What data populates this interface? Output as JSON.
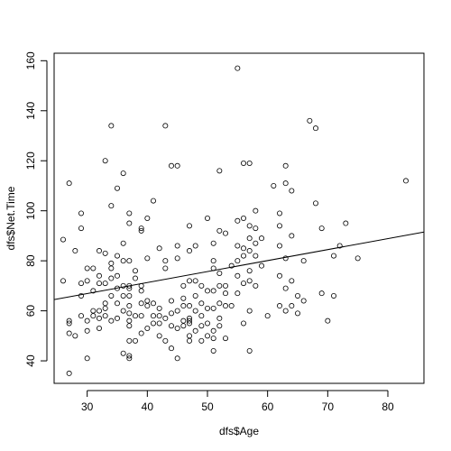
{
  "chart_data": {
    "type": "scatter",
    "title": "",
    "xlabel": "dfs$Age",
    "ylabel": "dfs$Net.Time",
    "xlim": [
      24.5,
      86
    ],
    "ylim": [
      31,
      163
    ],
    "xticks": [
      30,
      40,
      50,
      60,
      70,
      80
    ],
    "yticks": [
      40,
      60,
      80,
      100,
      120,
      140,
      160
    ],
    "grid": false,
    "legend": "none",
    "regression_line": {
      "x0": 24.5,
      "y0": 64.5,
      "x1": 86,
      "y1": 91.5
    },
    "points": [
      [
        26,
        88.5
      ],
      [
        26,
        72
      ],
      [
        27,
        111
      ],
      [
        27,
        56
      ],
      [
        27,
        55
      ],
      [
        27,
        51
      ],
      [
        27,
        35
      ],
      [
        28,
        50
      ],
      [
        28,
        84
      ],
      [
        29,
        99
      ],
      [
        29,
        93
      ],
      [
        29,
        71
      ],
      [
        29,
        66
      ],
      [
        29,
        58
      ],
      [
        30,
        77
      ],
      [
        30,
        72
      ],
      [
        30,
        56
      ],
      [
        30,
        52
      ],
      [
        30,
        41
      ],
      [
        31,
        77
      ],
      [
        31,
        60
      ],
      [
        31,
        58
      ],
      [
        31,
        68
      ],
      [
        32,
        84
      ],
      [
        32,
        74
      ],
      [
        32,
        71
      ],
      [
        32,
        60
      ],
      [
        32,
        57
      ],
      [
        32,
        53
      ],
      [
        33,
        120
      ],
      [
        33,
        83
      ],
      [
        33,
        71
      ],
      [
        33,
        63
      ],
      [
        33,
        61
      ],
      [
        33,
        58
      ],
      [
        34,
        134
      ],
      [
        34,
        102
      ],
      [
        34,
        79
      ],
      [
        34,
        77
      ],
      [
        34,
        73
      ],
      [
        34,
        66
      ],
      [
        34,
        56
      ],
      [
        35,
        109
      ],
      [
        35,
        82
      ],
      [
        35,
        74
      ],
      [
        35,
        69
      ],
      [
        35,
        63
      ],
      [
        35,
        57
      ],
      [
        36,
        115
      ],
      [
        36,
        87
      ],
      [
        36,
        80
      ],
      [
        36,
        70
      ],
      [
        36,
        66
      ],
      [
        36,
        60
      ],
      [
        36,
        43
      ],
      [
        37,
        99
      ],
      [
        37,
        95
      ],
      [
        37,
        80
      ],
      [
        37,
        70
      ],
      [
        37,
        69
      ],
      [
        37,
        66
      ],
      [
        37,
        62
      ],
      [
        37,
        59
      ],
      [
        37,
        56
      ],
      [
        37,
        54
      ],
      [
        37,
        48
      ],
      [
        37,
        42
      ],
      [
        37,
        41
      ],
      [
        38,
        76
      ],
      [
        38,
        73
      ],
      [
        38,
        58
      ],
      [
        38,
        48
      ],
      [
        39,
        93
      ],
      [
        39,
        92
      ],
      [
        39,
        70
      ],
      [
        39,
        68
      ],
      [
        39,
        63
      ],
      [
        39,
        58
      ],
      [
        39,
        51
      ],
      [
        40,
        97
      ],
      [
        40,
        81
      ],
      [
        40,
        64
      ],
      [
        40,
        62
      ],
      [
        40,
        53
      ],
      [
        41,
        104
      ],
      [
        41,
        63
      ],
      [
        41,
        58
      ],
      [
        41,
        55
      ],
      [
        42,
        85
      ],
      [
        42,
        61
      ],
      [
        42,
        58
      ],
      [
        42,
        55
      ],
      [
        42,
        50
      ],
      [
        43,
        134
      ],
      [
        43,
        80
      ],
      [
        43,
        77
      ],
      [
        43,
        57
      ],
      [
        43,
        48
      ],
      [
        44,
        118
      ],
      [
        44,
        64
      ],
      [
        44,
        59
      ],
      [
        44,
        54
      ],
      [
        44,
        45
      ],
      [
        45,
        118
      ],
      [
        45,
        86
      ],
      [
        45,
        81
      ],
      [
        45,
        60
      ],
      [
        45,
        53
      ],
      [
        45,
        41
      ],
      [
        46,
        70
      ],
      [
        46,
        65
      ],
      [
        46,
        62
      ],
      [
        46,
        56
      ],
      [
        46,
        54
      ],
      [
        47,
        94
      ],
      [
        47,
        84
      ],
      [
        47,
        72
      ],
      [
        47,
        62
      ],
      [
        47,
        57
      ],
      [
        47,
        56
      ],
      [
        47,
        55
      ],
      [
        47,
        50
      ],
      [
        47,
        48
      ],
      [
        48,
        86
      ],
      [
        48,
        72
      ],
      [
        48,
        66
      ],
      [
        48,
        60
      ],
      [
        48,
        52
      ],
      [
        49,
        70
      ],
      [
        49,
        63
      ],
      [
        49,
        58
      ],
      [
        49,
        54
      ],
      [
        49,
        48
      ],
      [
        50,
        97
      ],
      [
        50,
        68
      ],
      [
        50,
        61
      ],
      [
        50,
        55
      ],
      [
        50,
        50
      ],
      [
        51,
        87
      ],
      [
        51,
        80
      ],
      [
        51,
        77
      ],
      [
        51,
        68
      ],
      [
        51,
        61
      ],
      [
        51,
        52
      ],
      [
        51,
        49
      ],
      [
        51,
        44
      ],
      [
        52,
        116
      ],
      [
        52,
        92
      ],
      [
        52,
        75
      ],
      [
        52,
        70
      ],
      [
        52,
        63
      ],
      [
        52,
        57
      ],
      [
        52,
        54
      ],
      [
        53,
        91
      ],
      [
        53,
        70
      ],
      [
        53,
        67
      ],
      [
        53,
        62
      ],
      [
        53,
        49
      ],
      [
        54,
        78
      ],
      [
        54,
        62
      ],
      [
        55,
        157
      ],
      [
        55,
        96
      ],
      [
        55,
        86
      ],
      [
        55,
        80
      ],
      [
        55,
        74
      ],
      [
        55,
        67
      ],
      [
        56,
        119
      ],
      [
        56,
        97
      ],
      [
        56,
        85
      ],
      [
        56,
        82
      ],
      [
        56,
        71
      ],
      [
        56,
        55
      ],
      [
        57,
        119
      ],
      [
        57,
        94
      ],
      [
        57,
        89
      ],
      [
        57,
        84
      ],
      [
        57,
        76
      ],
      [
        57,
        72
      ],
      [
        57,
        60
      ],
      [
        57,
        44
      ],
      [
        58,
        100
      ],
      [
        58,
        93
      ],
      [
        58,
        87
      ],
      [
        58,
        82
      ],
      [
        58,
        70
      ],
      [
        59,
        89
      ],
      [
        59,
        78
      ],
      [
        60,
        58
      ],
      [
        61,
        110
      ],
      [
        62,
        99
      ],
      [
        62,
        94
      ],
      [
        62,
        86
      ],
      [
        62,
        74
      ],
      [
        62,
        62
      ],
      [
        63,
        118
      ],
      [
        63,
        111
      ],
      [
        63,
        81
      ],
      [
        63,
        69
      ],
      [
        63,
        60
      ],
      [
        64,
        108
      ],
      [
        64,
        90
      ],
      [
        64,
        72
      ],
      [
        64,
        62
      ],
      [
        65,
        66
      ],
      [
        65,
        59
      ],
      [
        66,
        80
      ],
      [
        66,
        64
      ],
      [
        67,
        136
      ],
      [
        68,
        133
      ],
      [
        68,
        103
      ],
      [
        69,
        93
      ],
      [
        69,
        67
      ],
      [
        70,
        56
      ],
      [
        71,
        82
      ],
      [
        71,
        66
      ],
      [
        72,
        86
      ],
      [
        73,
        95
      ],
      [
        75,
        81
      ],
      [
        83,
        112
      ]
    ]
  }
}
